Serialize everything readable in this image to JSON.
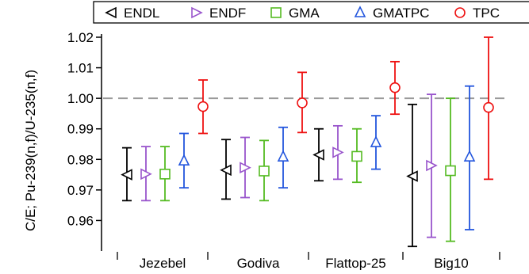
{
  "chart_data": {
    "type": "scatter",
    "subtype": "error-bar",
    "categories": [
      "Jezebel",
      "Godiva",
      "Flattop-25",
      "Big10"
    ],
    "ylabel": "C/E; Pu-239(n,f)/U-235(n,f)",
    "ylim": [
      0.95,
      1.02
    ],
    "yticks": [
      0.96,
      0.97,
      0.98,
      0.99,
      1.0,
      1.01,
      1.02
    ],
    "ytick_labels": [
      "0.96",
      "0.97",
      "0.98",
      "0.99",
      "1.00",
      "1.01",
      "1.02"
    ],
    "reference_line": {
      "y": 1.0,
      "style": "dashed",
      "color": "#999999"
    },
    "legend": {
      "placement": "top"
    },
    "series": [
      {
        "name": "ENDL",
        "marker": "triangle-left",
        "color": "#000000",
        "values": [
          0.975,
          0.9765,
          0.9815,
          0.9745
        ],
        "err_low": [
          0.9665,
          0.967,
          0.973,
          0.9515
        ],
        "err_high": [
          0.9838,
          0.9865,
          0.99,
          0.998
        ]
      },
      {
        "name": "ENDF",
        "marker": "triangle-right",
        "color": "#9955cc",
        "values": [
          0.9752,
          0.9773,
          0.9823,
          0.978
        ],
        "err_low": [
          0.9665,
          0.9675,
          0.9735,
          0.9545
        ],
        "err_high": [
          0.9842,
          0.9872,
          0.991,
          1.0013
        ]
      },
      {
        "name": "GMA",
        "marker": "square",
        "color": "#55bb22",
        "values": [
          0.9752,
          0.9762,
          0.981,
          0.9763
        ],
        "err_low": [
          0.9665,
          0.9665,
          0.9725,
          0.9532
        ],
        "err_high": [
          0.9842,
          0.9862,
          0.99,
          1.0
        ]
      },
      {
        "name": "GMATPC",
        "marker": "triangle-up",
        "color": "#2255dd",
        "values": [
          0.9795,
          0.9808,
          0.9855,
          0.9808
        ],
        "err_low": [
          0.9707,
          0.9707,
          0.9768,
          0.957
        ],
        "err_high": [
          0.9885,
          0.9905,
          0.9943,
          1.004
        ]
      },
      {
        "name": "TPC",
        "marker": "circle",
        "color": "#ee1111",
        "values": [
          0.9973,
          0.9985,
          1.0035,
          0.997
        ],
        "err_low": [
          0.9885,
          0.9888,
          0.9948,
          0.9735
        ],
        "err_high": [
          1.006,
          1.0085,
          1.012,
          1.02
        ]
      }
    ]
  }
}
